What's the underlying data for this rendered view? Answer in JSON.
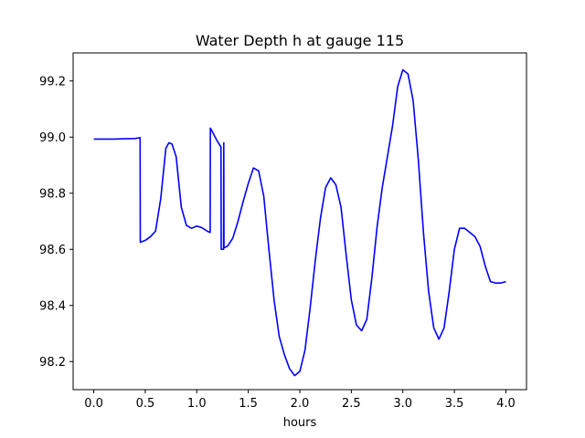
{
  "chart_data": {
    "type": "line",
    "title": "Water Depth h at gauge 115",
    "xlabel": "hours",
    "ylabel": "",
    "xlim": [
      -0.2,
      4.2
    ],
    "ylim": [
      98.1,
      99.3
    ],
    "xticks": [
      0.0,
      0.5,
      1.0,
      1.5,
      2.0,
      2.5,
      3.0,
      3.5,
      4.0
    ],
    "xtick_labels": [
      "0.0",
      "0.5",
      "1.0",
      "1.5",
      "2.0",
      "2.5",
      "3.0",
      "3.5",
      "4.0"
    ],
    "yticks": [
      98.2,
      98.4,
      98.6,
      98.8,
      99.0,
      99.2
    ],
    "ytick_labels": [
      "98.2",
      "98.4",
      "98.6",
      "98.8",
      "99.0",
      "99.2"
    ],
    "grid": false,
    "series": [
      {
        "color": "#0000ff",
        "x": [
          0.0,
          0.1,
          0.2,
          0.3,
          0.4,
          0.45,
          0.452,
          0.5,
          0.55,
          0.6,
          0.65,
          0.7,
          0.73,
          0.76,
          0.8,
          0.85,
          0.9,
          0.95,
          1.0,
          1.05,
          1.1,
          1.13,
          1.132,
          1.15,
          1.2,
          1.235,
          1.237,
          1.26,
          1.262,
          1.264,
          1.3,
          1.35,
          1.4,
          1.45,
          1.5,
          1.55,
          1.6,
          1.65,
          1.7,
          1.75,
          1.8,
          1.85,
          1.9,
          1.95,
          2.0,
          2.05,
          2.1,
          2.15,
          2.2,
          2.25,
          2.3,
          2.35,
          2.4,
          2.45,
          2.5,
          2.55,
          2.6,
          2.65,
          2.7,
          2.75,
          2.8,
          2.85,
          2.9,
          2.95,
          3.0,
          3.05,
          3.1,
          3.15,
          3.2,
          3.25,
          3.3,
          3.35,
          3.4,
          3.45,
          3.5,
          3.55,
          3.6,
          3.65,
          3.7,
          3.75,
          3.8,
          3.85,
          3.9,
          3.95,
          4.0
        ],
        "y": [
          98.993,
          98.993,
          98.993,
          98.994,
          98.995,
          98.998,
          98.625,
          98.632,
          98.645,
          98.665,
          98.78,
          98.96,
          98.98,
          98.975,
          98.93,
          98.75,
          98.685,
          98.675,
          98.683,
          98.677,
          98.665,
          98.66,
          99.032,
          99.02,
          98.985,
          98.965,
          98.6,
          98.6,
          98.98,
          98.605,
          98.612,
          98.64,
          98.7,
          98.77,
          98.835,
          98.89,
          98.88,
          98.79,
          98.6,
          98.42,
          98.29,
          98.225,
          98.175,
          98.15,
          98.165,
          98.24,
          98.39,
          98.56,
          98.71,
          98.82,
          98.855,
          98.83,
          98.75,
          98.58,
          98.42,
          98.33,
          98.31,
          98.35,
          98.5,
          98.68,
          98.82,
          98.93,
          99.04,
          99.18,
          99.24,
          99.225,
          99.13,
          98.92,
          98.66,
          98.45,
          98.32,
          98.28,
          98.32,
          98.45,
          98.6,
          98.675,
          98.675,
          98.66,
          98.645,
          98.61,
          98.54,
          98.485,
          98.48,
          98.48,
          98.485
        ]
      }
    ]
  }
}
